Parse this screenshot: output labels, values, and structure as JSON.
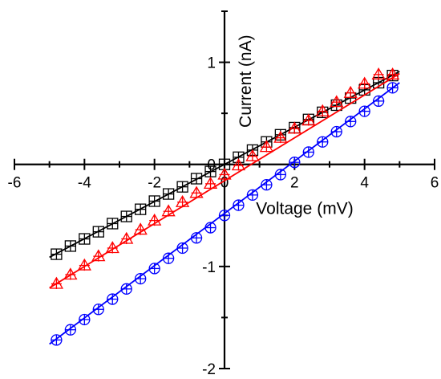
{
  "chart_data": {
    "type": "scatter",
    "title": "",
    "xlabel": "Voltage (mV)",
    "ylabel": "Current (nA)",
    "xlim": [
      -6,
      6
    ],
    "ylim": [
      -2,
      1.5
    ],
    "xticks": [
      -6,
      -4,
      -2,
      0,
      2,
      4,
      6
    ],
    "yticks": [
      -2,
      -1,
      0,
      1
    ],
    "x_tick_labels": [
      "-6",
      "-4",
      "-2",
      "0",
      "2",
      "4",
      "6"
    ],
    "y_tick_labels": [
      "-2",
      "-1",
      "0",
      "1"
    ],
    "axes": "crossing at origin",
    "grid": false,
    "legend": "none",
    "series": [
      {
        "color": "#000000",
        "marker": "square-cross",
        "x": [
          -4.8,
          -4.4,
          -4.0,
          -3.6,
          -3.2,
          -2.8,
          -2.4,
          -2.0,
          -1.6,
          -1.2,
          -0.8,
          -0.4,
          0.0,
          0.4,
          0.8,
          1.2,
          1.6,
          2.0,
          2.4,
          2.8,
          3.2,
          3.6,
          4.0,
          4.4,
          4.8
        ],
        "values": [
          -0.88,
          -0.8,
          -0.73,
          -0.66,
          -0.58,
          -0.51,
          -0.44,
          -0.36,
          -0.29,
          -0.22,
          -0.14,
          -0.07,
          0.0,
          0.07,
          0.14,
          0.22,
          0.29,
          0.36,
          0.44,
          0.51,
          0.58,
          0.65,
          0.73,
          0.8,
          0.87
        ],
        "fit": {
          "x": [
            -5.0,
            5.0
          ],
          "y": [
            -0.91,
            0.91
          ]
        }
      },
      {
        "color": "#ff0000",
        "marker": "triangle-cross",
        "x": [
          -4.8,
          -4.4,
          -4.0,
          -3.6,
          -3.2,
          -2.8,
          -2.4,
          -2.0,
          -1.6,
          -1.2,
          -0.8,
          -0.4,
          0.0,
          0.4,
          0.8,
          1.2,
          1.6,
          2.0,
          2.4,
          2.8,
          3.2,
          3.6,
          4.0,
          4.4,
          4.8
        ],
        "values": [
          -1.17,
          -1.08,
          -0.99,
          -0.9,
          -0.82,
          -0.73,
          -0.64,
          -0.55,
          -0.46,
          -0.37,
          -0.28,
          -0.19,
          -0.1,
          -0.01,
          0.08,
          0.17,
          0.26,
          0.35,
          0.43,
          0.52,
          0.61,
          0.7,
          0.79,
          0.88,
          0.88
        ],
        "fit": {
          "x": [
            -5.0,
            5.0
          ],
          "y": [
            -1.21,
            0.89
          ]
        }
      },
      {
        "color": "#0000ff",
        "marker": "circle-cross",
        "x": [
          -4.8,
          -4.4,
          -4.0,
          -3.6,
          -3.2,
          -2.8,
          -2.4,
          -2.0,
          -1.6,
          -1.2,
          -0.8,
          -0.4,
          0.0,
          0.4,
          0.8,
          1.2,
          1.6,
          2.0,
          2.4,
          2.8,
          3.2,
          3.6,
          4.0,
          4.4,
          4.8
        ],
        "values": [
          -1.72,
          -1.62,
          -1.52,
          -1.42,
          -1.32,
          -1.22,
          -1.12,
          -1.02,
          -0.92,
          -0.82,
          -0.72,
          -0.62,
          -0.5,
          -0.4,
          -0.3,
          -0.2,
          -0.1,
          0.02,
          0.12,
          0.22,
          0.32,
          0.42,
          0.52,
          0.62,
          0.75
        ],
        "fit": {
          "x": [
            -5.0,
            5.0
          ],
          "y": [
            -1.76,
            0.8
          ]
        }
      }
    ]
  }
}
